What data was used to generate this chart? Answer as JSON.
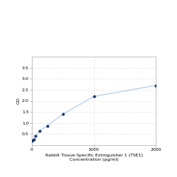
{
  "x": [
    0,
    15.625,
    31.25,
    62.5,
    125,
    250,
    500,
    1000,
    2000
  ],
  "y": [
    0.18,
    0.21,
    0.27,
    0.42,
    0.65,
    0.88,
    1.4,
    2.2,
    2.7
  ],
  "line_color": "#a8c8e8",
  "marker_color": "#1a3a6b",
  "marker_size": 3,
  "line_width": 0.8,
  "xlabel_line1": "Rabbit Tissue Specific Extinguisher 1 (TSE1)",
  "xlabel_line2": "Concentration (pg/ml)",
  "ylabel": "OD",
  "xlim": [
    0,
    2000
  ],
  "ylim": [
    0,
    4.0
  ],
  "yticks": [
    0.5,
    1.0,
    1.5,
    2.0,
    2.5,
    3.0,
    3.5
  ],
  "xticks": [
    0,
    1000,
    2000
  ],
  "background_color": "#ffffff",
  "grid_color": "#cccccc",
  "axis_fontsize": 4.5,
  "tick_fontsize": 4.5
}
